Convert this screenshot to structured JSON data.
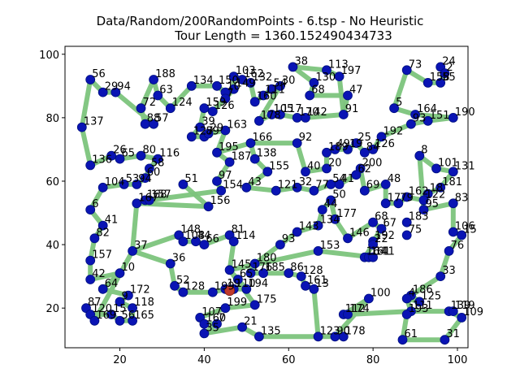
{
  "chart_data": {
    "type": "scatter",
    "title_line1": "Data/Random/200RandomPoints - 6.tsp - No Heuristic",
    "title_line2": "Tour Length = 1360.152490434733",
    "xlabel": "",
    "ylabel": "",
    "xlim": [
      7.0,
      102.5
    ],
    "ylim": [
      7.5,
      102.5
    ],
    "xticks": [
      20,
      40,
      60,
      80,
      100
    ],
    "yticks": [
      20,
      40,
      60,
      80,
      100
    ],
    "grid": false,
    "legend": "none",
    "colors": {
      "node": "#0a14b4",
      "node_edge": "#001080",
      "edge": "#7cc47c",
      "start": "#c0392b"
    },
    "points": [
      {
        "id": "24",
        "x": 96,
        "y": 96
      },
      {
        "id": "73",
        "x": 88,
        "y": 95
      },
      {
        "id": "2",
        "x": 97,
        "y": 94
      },
      {
        "id": "158",
        "x": 93,
        "y": 91
      },
      {
        "id": "55",
        "x": 96,
        "y": 91
      },
      {
        "id": "5",
        "x": 85,
        "y": 83
      },
      {
        "id": "164",
        "x": 90,
        "y": 81
      },
      {
        "id": "190",
        "x": 99,
        "y": 80
      },
      {
        "id": "151",
        "x": 93,
        "y": 79
      },
      {
        "id": "93",
        "x": 89,
        "y": 78
      },
      {
        "id": "192",
        "x": 82,
        "y": 74
      },
      {
        "id": "8",
        "x": 91,
        "y": 68
      },
      {
        "id": "101",
        "x": 95,
        "y": 64
      },
      {
        "id": "131",
        "x": 99,
        "y": 63
      },
      {
        "id": "181",
        "x": 96,
        "y": 58
      },
      {
        "id": "18",
        "x": 93,
        "y": 56
      },
      {
        "id": "83",
        "x": 99,
        "y": 53
      },
      {
        "id": "162",
        "x": 88,
        "y": 55
      },
      {
        "id": "122",
        "x": 92,
        "y": 54
      },
      {
        "id": "79",
        "x": 86,
        "y": 53
      },
      {
        "id": "17",
        "x": 83,
        "y": 53
      },
      {
        "id": "48",
        "x": 83,
        "y": 59
      },
      {
        "id": "69",
        "x": 78,
        "y": 57
      },
      {
        "id": "95",
        "x": 92,
        "y": 51
      },
      {
        "id": "183",
        "x": 88,
        "y": 47
      },
      {
        "id": "75",
        "x": 88,
        "y": 43
      },
      {
        "id": "106",
        "x": 99,
        "y": 44
      },
      {
        "id": "15",
        "x": 101,
        "y": 43
      },
      {
        "id": "76",
        "x": 98,
        "y": 38
      },
      {
        "id": "33",
        "x": 96,
        "y": 30
      },
      {
        "id": "186",
        "x": 89,
        "y": 24
      },
      {
        "id": "4",
        "x": 88,
        "y": 23
      },
      {
        "id": "125",
        "x": 91,
        "y": 22
      },
      {
        "id": "111",
        "x": 89,
        "y": 19
      },
      {
        "id": "193",
        "x": 88,
        "y": 18
      },
      {
        "id": "109",
        "x": 101,
        "y": 17
      },
      {
        "id": "139",
        "x": 98,
        "y": 19
      },
      {
        "id": "119",
        "x": 99,
        "y": 19
      },
      {
        "id": "31",
        "x": 97,
        "y": 10
      },
      {
        "id": "61",
        "x": 87,
        "y": 10
      },
      {
        "id": "100",
        "x": 79,
        "y": 23
      },
      {
        "id": "112",
        "x": 73,
        "y": 18
      },
      {
        "id": "174",
        "x": 74,
        "y": 18
      },
      {
        "id": "178",
        "x": 73,
        "y": 11
      },
      {
        "id": "90",
        "x": 71,
        "y": 11
      },
      {
        "id": "123",
        "x": 67,
        "y": 11
      },
      {
        "id": "113",
        "x": 69,
        "y": 95
      },
      {
        "id": "197",
        "x": 72,
        "y": 93
      },
      {
        "id": "38",
        "x": 61,
        "y": 96
      },
      {
        "id": "130",
        "x": 66,
        "y": 91
      },
      {
        "id": "68",
        "x": 65,
        "y": 87
      },
      {
        "id": "47",
        "x": 74,
        "y": 87
      },
      {
        "id": "91",
        "x": 73,
        "y": 81
      },
      {
        "id": "142",
        "x": 64,
        "y": 80
      },
      {
        "id": "170",
        "x": 62,
        "y": 80
      },
      {
        "id": "117",
        "x": 58,
        "y": 81
      },
      {
        "id": "105",
        "x": 56,
        "y": 81
      },
      {
        "id": "30",
        "x": 58,
        "y": 90
      },
      {
        "id": "54",
        "x": 56,
        "y": 89
      },
      {
        "id": "111b",
        "x": 54,
        "y": 87
      },
      {
        "id": "160",
        "x": 52,
        "y": 85
      },
      {
        "id": "132",
        "x": 51,
        "y": 91
      },
      {
        "id": "162b",
        "x": 49,
        "y": 92
      },
      {
        "id": "103",
        "x": 47,
        "y": 93
      },
      {
        "id": "149",
        "x": 47,
        "y": 89
      },
      {
        "id": "178b",
        "x": 53,
        "y": 79
      },
      {
        "id": "92",
        "x": 62,
        "y": 72
      },
      {
        "id": "25",
        "x": 76,
        "y": 72
      },
      {
        "id": "49",
        "x": 71,
        "y": 70
      },
      {
        "id": "189",
        "x": 69,
        "y": 69
      },
      {
        "id": "19",
        "x": 74,
        "y": 70
      },
      {
        "id": "84",
        "x": 78,
        "y": 69
      },
      {
        "id": "126b",
        "x": 80,
        "y": 70
      },
      {
        "id": "200",
        "x": 77,
        "y": 64
      },
      {
        "id": "62",
        "x": 76,
        "y": 62
      },
      {
        "id": "20",
        "x": 69,
        "y": 64
      },
      {
        "id": "40",
        "x": 64,
        "y": 63
      },
      {
        "id": "32",
        "x": 62,
        "y": 58
      },
      {
        "id": "77",
        "x": 66,
        "y": 57
      },
      {
        "id": "54b",
        "x": 70,
        "y": 59
      },
      {
        "id": "41",
        "x": 72,
        "y": 59
      },
      {
        "id": "50",
        "x": 70,
        "y": 54
      },
      {
        "id": "44",
        "x": 68,
        "y": 51
      },
      {
        "id": "177",
        "x": 71,
        "y": 48
      },
      {
        "id": "134",
        "x": 67,
        "y": 46
      },
      {
        "id": "146",
        "x": 74,
        "y": 42
      },
      {
        "id": "143",
        "x": 62,
        "y": 44
      },
      {
        "id": "68b",
        "x": 80,
        "y": 47
      },
      {
        "id": "67",
        "x": 82,
        "y": 45
      },
      {
        "id": "192b",
        "x": 80,
        "y": 41
      },
      {
        "id": "22",
        "x": 80,
        "y": 40
      },
      {
        "id": "153",
        "x": 67,
        "y": 38
      },
      {
        "id": "164b",
        "x": 78,
        "y": 36
      },
      {
        "id": "161",
        "x": 79,
        "y": 36
      },
      {
        "id": "141",
        "x": 80,
        "y": 36
      },
      {
        "id": "93b",
        "x": 58,
        "y": 40
      },
      {
        "id": "166",
        "x": 51,
        "y": 72
      },
      {
        "id": "138",
        "x": 52,
        "y": 67
      },
      {
        "id": "155",
        "x": 55,
        "y": 63
      },
      {
        "id": "43",
        "x": 50,
        "y": 58
      },
      {
        "id": "121",
        "x": 57,
        "y": 57
      },
      {
        "id": "195",
        "x": 43,
        "y": 69
      },
      {
        "id": "187",
        "x": 46,
        "y": 66
      },
      {
        "id": "97",
        "x": 43,
        "y": 60
      },
      {
        "id": "154",
        "x": 44,
        "y": 57
      },
      {
        "id": "51",
        "x": 35,
        "y": 59
      },
      {
        "id": "156",
        "x": 41,
        "y": 52
      },
      {
        "id": "39",
        "x": 39,
        "y": 77
      },
      {
        "id": "127",
        "x": 37,
        "y": 74
      },
      {
        "id": "89",
        "x": 40,
        "y": 74
      },
      {
        "id": "29b",
        "x": 41,
        "y": 75
      },
      {
        "id": "163",
        "x": 45,
        "y": 76
      },
      {
        "id": "159",
        "x": 40,
        "y": 83
      },
      {
        "id": "126",
        "x": 42,
        "y": 82
      },
      {
        "id": "150",
        "x": 43,
        "y": 90
      },
      {
        "id": "134b",
        "x": 37,
        "y": 90
      },
      {
        "id": "10",
        "x": 45,
        "y": 88
      },
      {
        "id": "7",
        "x": 45,
        "y": 86
      },
      {
        "id": "124",
        "x": 32,
        "y": 83
      },
      {
        "id": "188",
        "x": 28,
        "y": 92
      },
      {
        "id": "63",
        "x": 29,
        "y": 87
      },
      {
        "id": "72",
        "x": 25,
        "y": 83
      },
      {
        "id": "88",
        "x": 26,
        "y": 78
      },
      {
        "id": "57",
        "x": 28,
        "y": 78
      },
      {
        "id": "56",
        "x": 13,
        "y": 92
      },
      {
        "id": "29",
        "x": 16,
        "y": 88
      },
      {
        "id": "94",
        "x": 19,
        "y": 88
      },
      {
        "id": "137",
        "x": 11,
        "y": 77
      },
      {
        "id": "26",
        "x": 18,
        "y": 68
      },
      {
        "id": "136",
        "x": 13,
        "y": 65
      },
      {
        "id": "65",
        "x": 20,
        "y": 67
      },
      {
        "id": "80",
        "x": 25,
        "y": 68
      },
      {
        "id": "116",
        "x": 29,
        "y": 67
      },
      {
        "id": "58",
        "x": 27,
        "y": 64
      },
      {
        "id": "60",
        "x": 26,
        "y": 61
      },
      {
        "id": "94b",
        "x": 24,
        "y": 59
      },
      {
        "id": "53",
        "x": 21,
        "y": 59
      },
      {
        "id": "104",
        "x": 16,
        "y": 58
      },
      {
        "id": "167",
        "x": 24,
        "y": 53
      },
      {
        "id": "168",
        "x": 26,
        "y": 54
      },
      {
        "id": "157b",
        "x": 27,
        "y": 54
      },
      {
        "id": "6",
        "x": 13,
        "y": 51
      },
      {
        "id": "41b",
        "x": 16,
        "y": 46
      },
      {
        "id": "82",
        "x": 14,
        "y": 42
      },
      {
        "id": "157",
        "x": 13,
        "y": 35
      },
      {
        "id": "42",
        "x": 13,
        "y": 29
      },
      {
        "id": "10b",
        "x": 20,
        "y": 31
      },
      {
        "id": "64",
        "x": 16,
        "y": 26
      },
      {
        "id": "172",
        "x": 22,
        "y": 24
      },
      {
        "id": "9",
        "x": 20,
        "y": 22
      },
      {
        "id": "118",
        "x": 23,
        "y": 20
      },
      {
        "id": "87",
        "x": 12,
        "y": 20
      },
      {
        "id": "120",
        "x": 13,
        "y": 18
      },
      {
        "id": "15b",
        "x": 18,
        "y": 18
      },
      {
        "id": "169",
        "x": 14,
        "y": 16
      },
      {
        "id": "56b",
        "x": 20,
        "y": 16
      },
      {
        "id": "165",
        "x": 23,
        "y": 16
      },
      {
        "id": "37",
        "x": 23,
        "y": 38
      },
      {
        "id": "148",
        "x": 34,
        "y": 43
      },
      {
        "id": "108",
        "x": 35,
        "y": 41
      },
      {
        "id": "44b",
        "x": 38,
        "y": 41
      },
      {
        "id": "66",
        "x": 40,
        "y": 40
      },
      {
        "id": "81",
        "x": 46,
        "y": 43
      },
      {
        "id": "114",
        "x": 47,
        "y": 41
      },
      {
        "id": "36",
        "x": 32,
        "y": 34
      },
      {
        "id": "52",
        "x": 33,
        "y": 27
      },
      {
        "id": "128",
        "x": 35,
        "y": 25
      },
      {
        "id": "199",
        "x": 42,
        "y": 25
      },
      {
        "id": "19b",
        "x": 45,
        "y": 26
      },
      {
        "id": "110",
        "x": 47,
        "y": 26
      },
      {
        "id": "194",
        "x": 50,
        "y": 26
      },
      {
        "id": "145",
        "x": 46,
        "y": 32
      },
      {
        "id": "65b",
        "x": 48,
        "y": 29
      },
      {
        "id": "176",
        "x": 51,
        "y": 31
      },
      {
        "id": "180",
        "x": 52,
        "y": 34
      },
      {
        "id": "185",
        "x": 54,
        "y": 31
      },
      {
        "id": "86",
        "x": 60,
        "y": 31
      },
      {
        "id": "128b",
        "x": 63,
        "y": 30
      },
      {
        "id": "161b",
        "x": 64,
        "y": 27
      },
      {
        "id": "13",
        "x": 66,
        "y": 26
      },
      {
        "id": "175",
        "x": 52,
        "y": 21
      },
      {
        "id": "199b",
        "x": 45,
        "y": 20
      },
      {
        "id": "107",
        "x": 39,
        "y": 17
      },
      {
        "id": "160b",
        "x": 40,
        "y": 15
      },
      {
        "id": "7b",
        "x": 43,
        "y": 15
      },
      {
        "id": "35",
        "x": 40,
        "y": 12
      },
      {
        "id": "21",
        "x": 49,
        "y": 14
      },
      {
        "id": "135",
        "x": 53,
        "y": 11
      }
    ],
    "start_point": {
      "x": 46,
      "y": 25.5
    },
    "tour": [
      "24",
      "2",
      "55",
      "158",
      "73",
      "5",
      "164",
      "190",
      "151",
      "93",
      "192",
      "126b",
      "84",
      "25",
      "19",
      "49",
      "189",
      "20",
      "40",
      "92",
      "166",
      "138",
      "155",
      "43",
      "121",
      "32",
      "77",
      "54b",
      "41",
      "62",
      "200",
      "69",
      "48",
      "17",
      "79",
      "162",
      "122",
      "18",
      "181",
      "131",
      "101",
      "8",
      "95",
      "83",
      "106",
      "15",
      "76",
      "33",
      "186",
      "125",
      "4",
      "111",
      "193",
      "61",
      "31",
      "109",
      "139",
      "119",
      "111",
      "174",
      "112",
      "100",
      "90",
      "178",
      "123",
      "13",
      "161b",
      "128b",
      "86",
      "185",
      "176",
      "180",
      "93b",
      "143",
      "134",
      "44",
      "50",
      "177",
      "146",
      "68b",
      "67",
      "192b",
      "22",
      "164b",
      "161",
      "141",
      "153",
      "145",
      "65b",
      "194",
      "110",
      "19b",
      "199",
      "128",
      "52",
      "36",
      "37",
      "167",
      "168",
      "157b",
      "154",
      "97",
      "187",
      "195",
      "163",
      "29b",
      "89",
      "127",
      "39",
      "159",
      "126",
      "7",
      "10",
      "150",
      "134b",
      "124",
      "63",
      "188",
      "72",
      "88",
      "57",
      "94",
      "29",
      "56",
      "137",
      "136",
      "26",
      "65",
      "80",
      "116",
      "58",
      "60",
      "94b",
      "53",
      "104",
      "6",
      "41b",
      "82",
      "157",
      "42",
      "10b",
      "64",
      "172",
      "9",
      "118",
      "165",
      "56b",
      "15b",
      "120",
      "87",
      "169",
      "37",
      "148",
      "108",
      "44b",
      "66",
      "81",
      "114",
      "145",
      "175",
      "199b",
      "107",
      "160b",
      "7b",
      "35",
      "21",
      "135",
      "123"
    ],
    "tour_extra": [
      [
        "149",
        "103",
        "162b",
        "132",
        "160",
        "111b",
        "54",
        "30",
        "178b",
        "105",
        "117",
        "170",
        "142",
        "91",
        "47",
        "68",
        "130",
        "38",
        "113",
        "197"
      ],
      [
        "51",
        "156",
        "167"
      ],
      [
        "166",
        "195"
      ],
      [
        "149",
        "7"
      ],
      [
        "197",
        "91"
      ]
    ]
  }
}
